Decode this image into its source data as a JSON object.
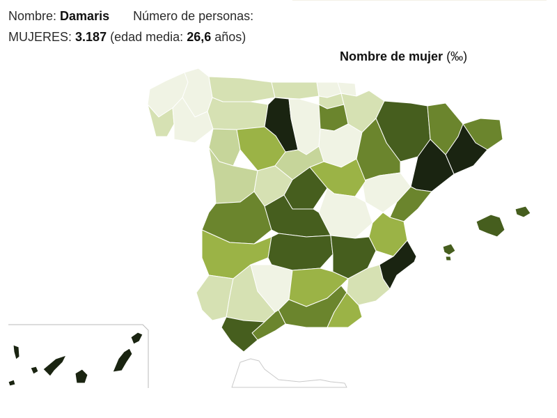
{
  "header": {
    "name_label": "Nombre:",
    "name_value": "Damaris",
    "people_label": "Número de personas:",
    "women_label": "MUJERES:",
    "women_count": "3.187",
    "age_open": "(edad media:",
    "age_value": "26,6",
    "age_close": "años)"
  },
  "map": {
    "title": "Nombre de mujer",
    "unit_open": "(",
    "unit": "‰",
    "unit_close": ")",
    "palette": [
      "#f0f3e4",
      "#d6e1b3",
      "#c6d59a",
      "#9bb346",
      "#6b852d",
      "#465e1e",
      "#1a2411"
    ]
  }
}
